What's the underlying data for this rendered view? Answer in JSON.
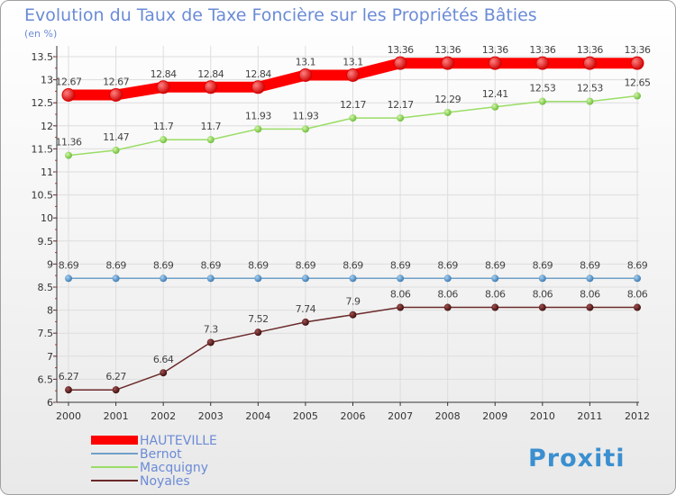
{
  "chart_data": {
    "type": "line",
    "title": "Evolution du Taux de Taxe Foncière sur les Propriétés Bâties",
    "ylabel": "(en %)",
    "xlabel": "",
    "ylim": [
      6,
      13.5
    ],
    "yticks": [
      "6",
      "6.5",
      "7",
      "7.5",
      "8",
      "8.5",
      "9",
      "9.5",
      "10",
      "10.5",
      "11",
      "11.5",
      "12",
      "12.5",
      "13",
      "13.5"
    ],
    "ytick_values": [
      6,
      6.5,
      7,
      7.5,
      8,
      8.5,
      9,
      9.5,
      10,
      10.5,
      11,
      11.5,
      12,
      12.5,
      13,
      13.5
    ],
    "categories": [
      "2000",
      "2001",
      "2002",
      "2003",
      "2004",
      "2005",
      "2006",
      "2007",
      "2008",
      "2009",
      "2010",
      "2011",
      "2012"
    ],
    "grid": true,
    "legend_position": "bottom-left",
    "series": [
      {
        "name": "HAUTEVILLE",
        "color": "#ff0000",
        "values": [
          12.67,
          12.67,
          12.84,
          12.84,
          12.84,
          13.1,
          13.1,
          13.36,
          13.36,
          13.36,
          13.36,
          13.36,
          13.36
        ],
        "labels": [
          "12.67",
          "12.67",
          "12.84",
          "12.84",
          "12.84",
          "13.1",
          "13.1",
          "13.36",
          "13.36",
          "13.36",
          "13.36",
          "13.36",
          "13.36"
        ]
      },
      {
        "name": "Bernot",
        "color": "#6fa0c8",
        "values": [
          8.69,
          8.69,
          8.69,
          8.69,
          8.69,
          8.69,
          8.69,
          8.69,
          8.69,
          8.69,
          8.69,
          8.69,
          8.69
        ],
        "labels": [
          "8.69",
          "8.69",
          "8.69",
          "8.69",
          "8.69",
          "8.69",
          "8.69",
          "8.69",
          "8.69",
          "8.69",
          "8.69",
          "8.69",
          "8.69"
        ]
      },
      {
        "name": "Macquigny",
        "color": "#99dd66",
        "values": [
          11.36,
          11.47,
          11.7,
          11.7,
          11.93,
          11.93,
          12.17,
          12.17,
          12.29,
          12.41,
          12.53,
          12.53,
          12.65
        ],
        "labels": [
          "11.36",
          "11.47",
          "11.7",
          "11.7",
          "11.93",
          "11.93",
          "12.17",
          "12.17",
          "12.29",
          "12.41",
          "12.53",
          "12.53",
          "12.65"
        ]
      },
      {
        "name": "Noyales",
        "color": "#6b2a2a",
        "values": [
          6.27,
          6.27,
          6.64,
          7.3,
          7.52,
          7.74,
          7.9,
          8.06,
          8.06,
          8.06,
          8.06,
          8.06,
          8.06
        ],
        "labels": [
          "6.27",
          "6.27",
          "6.64",
          "7.3",
          "7.52",
          "7.74",
          "7.9",
          "8.06",
          "8.06",
          "8.06",
          "8.06",
          "8.06",
          "8.06"
        ]
      }
    ]
  },
  "logo": {
    "text": "Proxiti"
  }
}
